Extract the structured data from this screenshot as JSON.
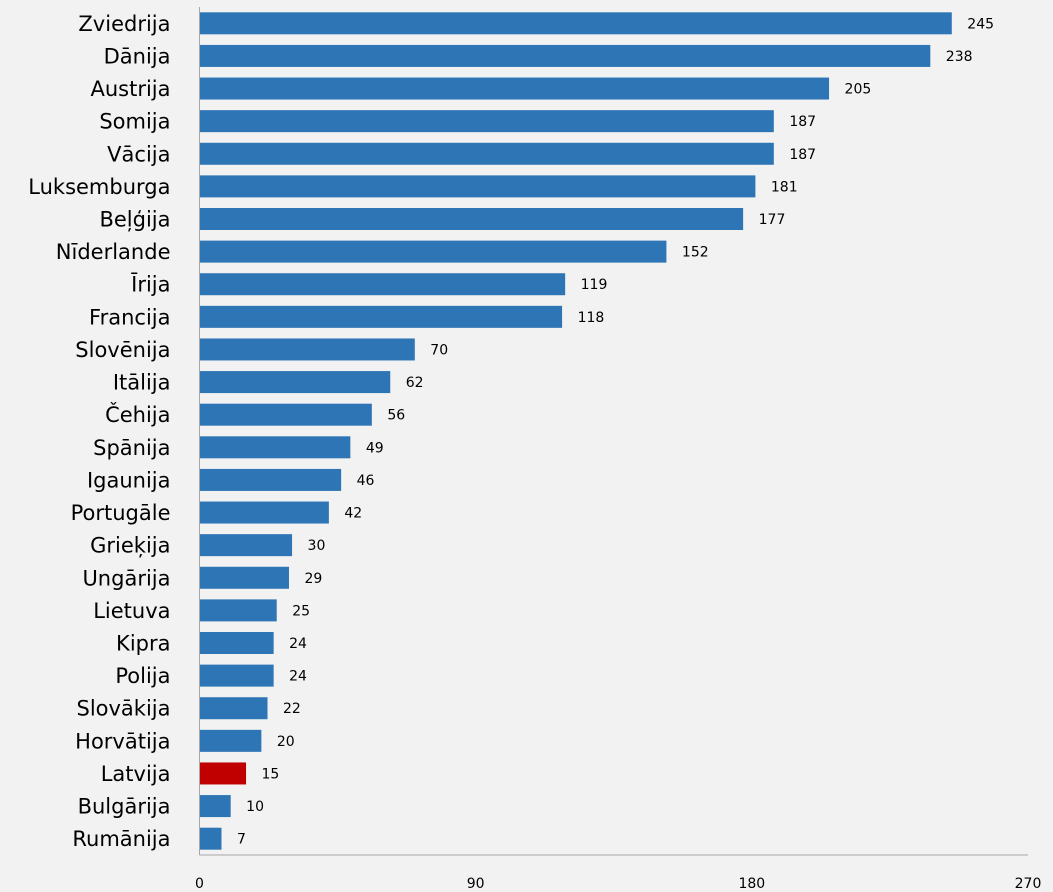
{
  "chart_data": {
    "type": "bar",
    "orientation": "horizontal",
    "title": "",
    "xlabel": "",
    "ylabel": "",
    "xlim": [
      0,
      270
    ],
    "xticks": [
      0,
      90,
      180,
      270
    ],
    "grid": false,
    "legend": "none",
    "categories": [
      "Zviedrija",
      "Dānija",
      "Austrija",
      "Somija",
      "Vācija",
      "Luksemburga",
      "Beļģija",
      "Nīderlande",
      "Īrija",
      "Francija",
      "Slovēnija",
      "Itālija",
      "Čehija",
      "Spānija",
      "Igaunija",
      "Portugāle",
      "Grieķija",
      "Ungārija",
      "Lietuva",
      "Kipra",
      "Polija",
      "Slovākija",
      "Horvātija",
      "Latvija",
      "Bulgārija",
      "Rumānija"
    ],
    "values": [
      245,
      238,
      205,
      187,
      187,
      181,
      177,
      152,
      119,
      118,
      70,
      62,
      56,
      49,
      46,
      42,
      30,
      29,
      25,
      24,
      24,
      22,
      20,
      15,
      10,
      7
    ],
    "colors": {
      "default": "#2e75b6",
      "highlight": "#c00000",
      "highlight_category": "Latvija"
    }
  }
}
